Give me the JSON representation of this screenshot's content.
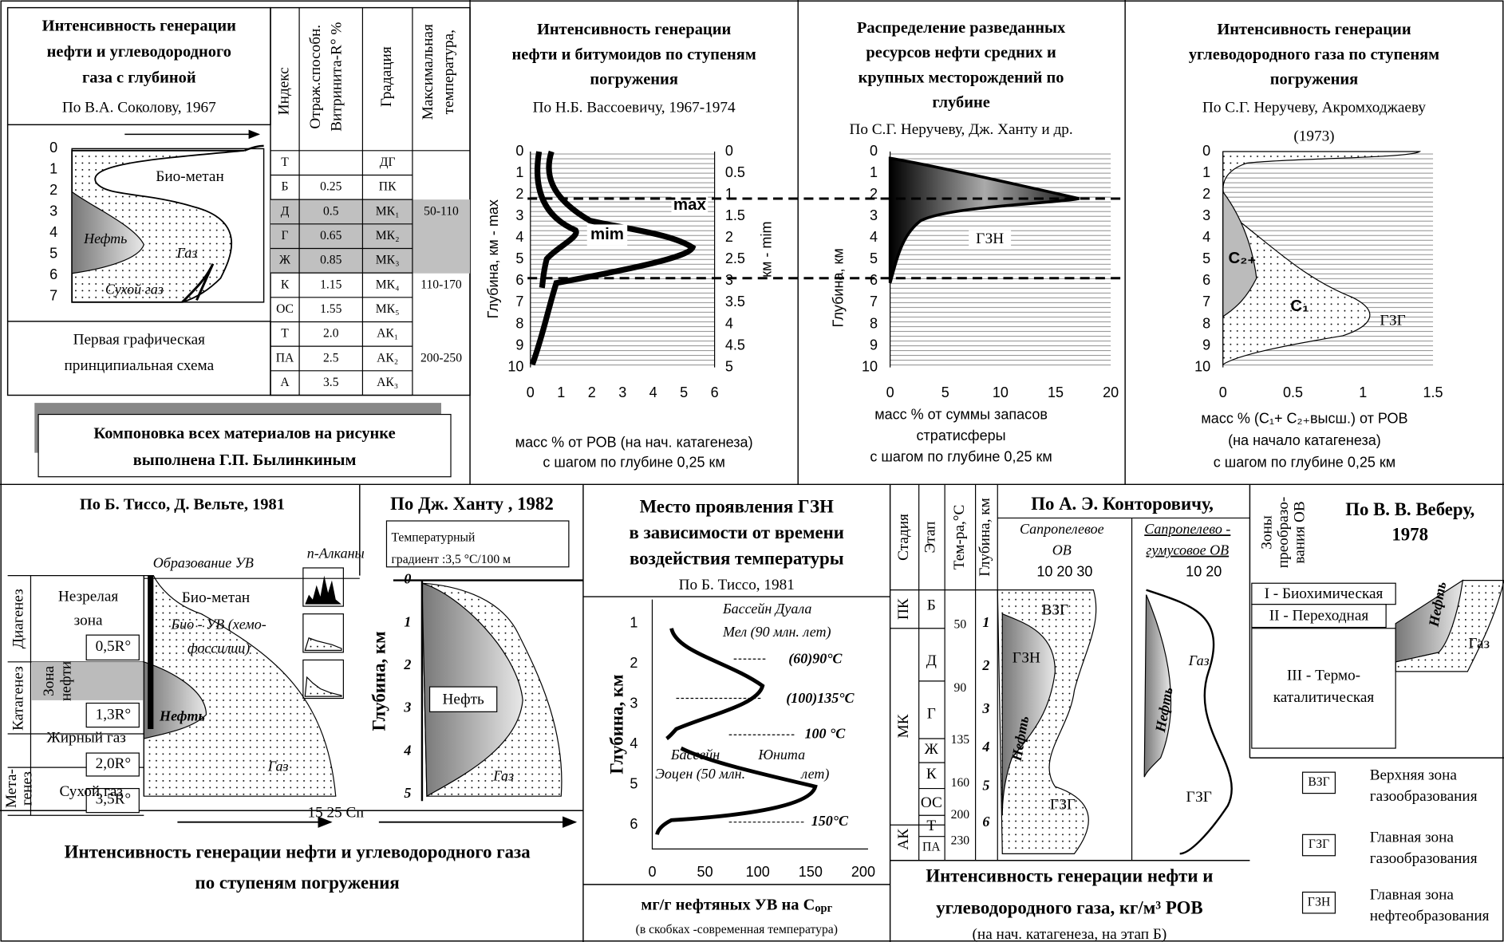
{
  "sokolov": {
    "title": [
      "Интенсивность генерации",
      "нефти и углеводородного",
      "газа с глубиной"
    ],
    "author": "По В.А. Соколову, 1967",
    "yticks": [
      0,
      1,
      2,
      3,
      4,
      5,
      6,
      7
    ],
    "labels": {
      "biomethane": "Био-метан",
      "oil": "Нефть",
      "gas": "Газ",
      "dry_gas": "Сухой газ"
    },
    "caption": [
      "Первая графическая",
      "принципиальная схема"
    ]
  },
  "table": {
    "header": {
      "index": "Индекс",
      "reflectance": [
        "Отраж.способн.",
        "Витринита-R° %"
      ],
      "gradation": "Градация",
      "temperature": [
        "Максимальная",
        "температура,"
      ]
    },
    "rows": [
      {
        "index": "Т",
        "gradation": "ДГ"
      },
      {
        "index": "Б",
        "r": "0.25",
        "gradation": "ПК"
      },
      {
        "index": "Д",
        "r": "0.5",
        "gradation": "МК₁",
        "temp": "50-110",
        "highlighted": true
      },
      {
        "index": "Г",
        "r": "0.65",
        "gradation": "МК₂",
        "highlighted": true
      },
      {
        "index": "Ж",
        "r": "0.85",
        "gradation": "МК₃",
        "highlighted": true
      },
      {
        "index": "К",
        "r": "1.15",
        "gradation": "МК₄",
        "temp": "110-170"
      },
      {
        "index": "ОС",
        "r": "1.55",
        "gradation": "МК₅"
      },
      {
        "index": "Т",
        "r": "2.0",
        "gradation": "АК₁"
      },
      {
        "index": "ПА",
        "r": "2.5",
        "gradation": "АК₂",
        "temp": "200-250"
      },
      {
        "index": "А",
        "r": "3.5",
        "gradation": "АК₃"
      }
    ]
  },
  "credit": [
    "Компоновка всех материалов на рисунке",
    "выполнена Г.П. Былинкиным"
  ],
  "vassoevich": {
    "title": [
      "Интенсивность генерации",
      "нефти и битумоидов по ступеням",
      "погружения"
    ],
    "author": "По Н.Б. Вассоевичу, 1967-1974",
    "yticks": [
      0,
      1,
      2,
      3,
      4,
      5,
      6,
      7,
      8,
      9,
      10
    ],
    "y2ticks": [
      0,
      0.5,
      1,
      1.5,
      2,
      2.5,
      3,
      3.5,
      4,
      4.5,
      5
    ],
    "xticks": [
      0,
      1,
      2,
      3,
      4,
      5,
      6
    ],
    "ylabel": "Глубина, км  - max",
    "y2label": "км - mim",
    "max": "max",
    "mim": "mim",
    "xlabel": [
      "масс % от РОВ (на нач. катагенеза)",
      "с шагом по глубине 0,25 км"
    ]
  },
  "neruchev_oil": {
    "title": [
      "Распределение разведанных",
      "ресурсов нефти   средних и",
      "крупных месторождений по",
      "глубине"
    ],
    "author": "По С.Г. Неручеву, Дж. Ханту и др.",
    "yticks": [
      0,
      1,
      2,
      3,
      4,
      5,
      6,
      7,
      8,
      9,
      10
    ],
    "xticks": [
      0,
      5,
      10,
      15,
      20
    ],
    "ylabel": "Глубина,   км",
    "zone": "ГЗН",
    "xlabel": [
      "масс % от суммы запасов",
      "стратисферы",
      "с шагом по глубине 0,25 км"
    ]
  },
  "neruchev_gas": {
    "title": [
      "Интенсивность генерации",
      "углеводородного газа по ступеням",
      "погружения"
    ],
    "author": [
      "По С.Г. Неручеву, Акромходжаеву",
      "(1973)"
    ],
    "yticks": [
      0,
      1,
      2,
      3,
      4,
      5,
      6,
      7,
      8,
      9,
      10
    ],
    "xticks": [
      0,
      0.5,
      1,
      1.5
    ],
    "labels": {
      "c2": "C₂₊",
      "c1": "C₁",
      "zone": "ГЗГ"
    },
    "xlabel": [
      "масс % (C₁+ C₂₊высш.) от РОВ",
      "(на начало катагенеза)",
      "с шагом по глубине 0,25 км"
    ]
  },
  "tissot_welte": {
    "title": "По Б. Тиссо, Д. Вельте, 1981",
    "stages": {
      "diagenesis": "Диагенез",
      "catagenesis": "Катагенез",
      "metagenesis": [
        "Мета-",
        "генез"
      ]
    },
    "zones": {
      "immature": [
        "Незрелая",
        "зона"
      ],
      "oil": [
        "Зона",
        "нефти"
      ],
      "wet_gas": "Жирный газ",
      "dry_gas": "Сухой газ"
    },
    "r_bounds": [
      "0,5R°",
      "1,3R°",
      "2,0R°",
      "3,5R°"
    ],
    "labels": {
      "formation": "Образование УВ",
      "biomethane": "Био-метан",
      "bio_hc": [
        "Био - УВ (хемо-",
        "фоссилии)"
      ],
      "oil": "Нефть",
      "gas": "Газ",
      "alkanes": "n-Алканы",
      "cn": "15   25  Cn"
    },
    "caption": [
      "Интенсивность генерации нефти и углеводородного газа",
      "по ступеням погружения"
    ]
  },
  "hunt": {
    "title": "По Дж. Ханту , 1982",
    "gradient": [
      "Температурный",
      "градиент :3,5 °C/100 м"
    ],
    "yticks": [
      0,
      1,
      2,
      3,
      4,
      5
    ],
    "ylabel": "Глубина, км",
    "oil": "Нефть",
    "gas": "Газ"
  },
  "tissot": {
    "title": [
      "Место проявления ГЗН",
      "в зависимости от времени",
      "воздействия температуры"
    ],
    "author": "По Б. Тиссо, 1981",
    "yticks": [
      1,
      2,
      3,
      4,
      5,
      6
    ],
    "xticks": [
      0,
      50,
      100,
      150,
      200
    ],
    "ylabel": "Глубина, км",
    "annotations": {
      "duala": "Бассейн Дуала",
      "cretaceous": "Мел (90 млн. лет)",
      "t1": "(60)90°C",
      "t2": "(100)135°C",
      "t3": "100 °C",
      "basin": "Бассейн",
      "uinta": "Юнита",
      "eocene": "Эоцен (50 млн.",
      "years": "лет)",
      "t4": "150°C"
    },
    "xlabel": [
      "мг/г нефтяных УВ на С",
      "орг"
    ],
    "note": "(в скобках -современная температура)"
  },
  "kontorovich": {
    "columns": [
      "Стадия",
      "Этап",
      "Тем-ра,°С",
      "Глубина, км"
    ],
    "title": "По А. Э. Конторовичу,",
    "sapropel": [
      "Сапропелевое",
      "ОВ"
    ],
    "humic": [
      "Сапропелево -",
      "гумусовое ОВ"
    ],
    "scale1": "10   20   30",
    "scale2": "10     20",
    "stages": [
      "ПК",
      "МК",
      "АК"
    ],
    "etaps": [
      "Б",
      "Д",
      "Г",
      "Ж",
      "К",
      "ОС",
      "Т",
      "ПА"
    ],
    "temps": [
      50,
      90,
      135,
      160,
      200,
      230
    ],
    "depths": [
      1,
      2,
      3,
      4,
      5,
      6
    ],
    "labels": {
      "vzg": "ВЗГ",
      "gzn": "ГЗН",
      "oil": "Нефть",
      "gzg": "ГЗГ",
      "gas": "Газ"
    },
    "caption": [
      "Интенсивность генерации нефти и",
      "углеводородного газа, кг/м³ РОВ",
      "(на нач. катагенеза, на этап Б)"
    ]
  },
  "weber": {
    "column": [
      "Зоны",
      "преобразо-",
      "вания ОВ"
    ],
    "title": [
      "По В. В. Веберу,",
      "1978"
    ],
    "zones": [
      "I - Биохимическая",
      "II - Переходная",
      [
        "III - Термо-",
        "каталитическая"
      ]
    ],
    "oil": "Нефть",
    "gas": "Газ",
    "legend": [
      {
        "code": "ВЗГ",
        "text": [
          "Верхняя зона",
          "газообразования"
        ]
      },
      {
        "code": "ГЗГ",
        "text": [
          "Главная зона",
          "газообразования"
        ]
      },
      {
        "code": "ГЗН",
        "text": [
          "Главная зона",
          "нефтеобразования"
        ]
      }
    ]
  }
}
